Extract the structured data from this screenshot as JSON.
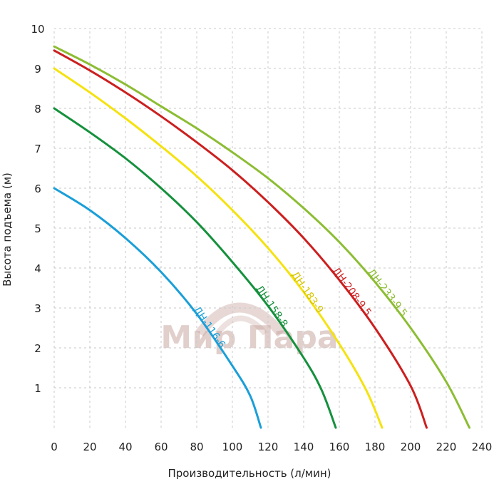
{
  "chart_data": {
    "type": "line",
    "xlabel": "Производительность (л/мин)",
    "ylabel": "Высота подъема (м)",
    "xlim": [
      0,
      240
    ],
    "ylim": [
      0,
      10
    ],
    "x_ticks": [
      "0",
      "20",
      "40",
      "60",
      "80",
      "100",
      "120",
      "140",
      "160",
      "180",
      "200",
      "220",
      "240"
    ],
    "y_ticks": [
      "1",
      "2",
      "3",
      "4",
      "5",
      "6",
      "7",
      "8",
      "9",
      "10"
    ],
    "grid": true,
    "legend": "inline labels along curves",
    "series": [
      {
        "name": "ДН-116-6",
        "color": "#1a9fd8",
        "x": [
          0,
          20,
          40,
          60,
          80,
          100,
          110,
          116
        ],
        "y": [
          6.0,
          5.45,
          4.75,
          3.9,
          2.85,
          1.55,
          0.8,
          0.0
        ]
      },
      {
        "name": "ДН-158-8",
        "color": "#15913d",
        "x": [
          0,
          20,
          40,
          60,
          80,
          100,
          120,
          140,
          150,
          158
        ],
        "y": [
          8.0,
          7.4,
          6.75,
          6.0,
          5.15,
          4.15,
          3.05,
          1.75,
          0.95,
          0.0
        ]
      },
      {
        "name": "ДН-183-9",
        "color": "#f5e20f",
        "x": [
          0,
          20,
          40,
          60,
          80,
          100,
          120,
          140,
          160,
          175,
          184
        ],
        "y": [
          9.0,
          8.4,
          7.75,
          7.05,
          6.3,
          5.45,
          4.5,
          3.4,
          2.1,
          0.95,
          0.0
        ]
      },
      {
        "name": "ДН-208-9,5",
        "color": "#cc1f1f",
        "x": [
          0,
          20,
          40,
          60,
          80,
          100,
          120,
          140,
          160,
          180,
          200,
          209
        ],
        "y": [
          9.45,
          8.95,
          8.4,
          7.8,
          7.15,
          6.45,
          5.65,
          4.75,
          3.7,
          2.5,
          1.05,
          0.0
        ]
      },
      {
        "name": "ДН-233-9,5",
        "color": "#8cbd33",
        "x": [
          0,
          20,
          40,
          60,
          80,
          100,
          120,
          140,
          160,
          180,
          200,
          220,
          233
        ],
        "y": [
          9.55,
          9.1,
          8.6,
          8.05,
          7.5,
          6.9,
          6.25,
          5.5,
          4.65,
          3.65,
          2.5,
          1.15,
          0.0
        ]
      }
    ]
  },
  "watermark": {
    "text": "Мир Пара"
  }
}
